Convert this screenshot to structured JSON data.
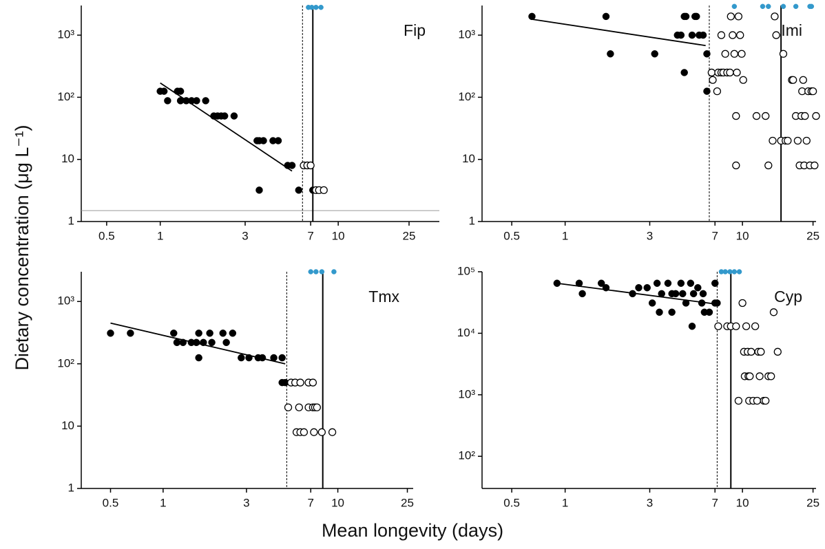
{
  "figure": {
    "xlabel": "Mean longevity (days)",
    "ylabel": "Dietary concentration (μg L⁻¹)"
  },
  "chart_data": [
    {
      "type": "scatter",
      "title": "Fip",
      "xlim": [
        0.36,
        37
      ],
      "ylim": [
        1,
        3000
      ],
      "log_x": true,
      "log_y": true,
      "xticks": [
        0.5,
        1,
        3,
        7,
        10,
        25
      ],
      "yticks": [
        1,
        10,
        {
          "value": 100,
          "label": "10²"
        },
        {
          "value": 1000,
          "label": "10³"
        }
      ],
      "series": [
        {
          "color": "#000000",
          "filled": true,
          "x": [
            1,
            1.05,
            1.1,
            1.25,
            1.3,
            1.3,
            1.4,
            1.5,
            1.6,
            1.8,
            2.0,
            2.1,
            2.2,
            2.3,
            2.6,
            3.5,
            3.6,
            3.8,
            4.3,
            4.6,
            3.6,
            5.2,
            5.5,
            6,
            7.2
          ],
          "values": [
            125,
            125,
            88,
            125,
            125,
            88,
            88,
            88,
            88,
            88,
            50,
            50,
            50,
            50,
            50,
            20,
            20,
            20,
            20,
            20,
            3.2,
            8,
            8,
            3.2,
            3.2
          ]
        },
        {
          "color": "#000000",
          "filled": false,
          "x": [
            6.4,
            6.7,
            7,
            7.5,
            7.8,
            8.3
          ],
          "values": [
            8,
            8,
            8,
            3.2,
            3.2,
            3.2
          ]
        },
        {
          "color": "#3399cc",
          "filled": true,
          "small": true,
          "x": [
            6.8,
            7.1,
            7.5,
            8
          ],
          "values": [
            2800,
            2800,
            2800,
            2800
          ]
        }
      ],
      "fit": {
        "x": [
          1,
          5.5
        ],
        "values": [
          170,
          6.5
        ]
      },
      "vlines": [
        {
          "x": 6.3,
          "style": "dashed"
        },
        {
          "x": 7.2,
          "style": "solid"
        }
      ],
      "hlines": [
        {
          "y": 1.5,
          "color": "#999999"
        }
      ]
    },
    {
      "type": "scatter",
      "title": "Imi",
      "xlim": [
        0.34,
        26
      ],
      "ylim": [
        1,
        3000
      ],
      "log_x": true,
      "log_y": true,
      "xticks": [
        0.5,
        1,
        3,
        7,
        10,
        25
      ],
      "yticks": [
        1,
        10,
        {
          "value": 100,
          "label": "10²"
        },
        {
          "value": 1000,
          "label": "10³"
        }
      ],
      "series": [
        {
          "color": "#000000",
          "filled": true,
          "x": [
            0.65,
            1.7,
            1.8,
            3.2,
            4.3,
            4.5,
            4.7,
            4.8,
            4.7,
            5.2,
            5.4,
            5.5,
            5.7,
            6,
            6.3,
            6.3
          ],
          "values": [
            2000,
            2000,
            500,
            500,
            1000,
            1000,
            2000,
            2000,
            250,
            1000,
            2000,
            2000,
            1000,
            1000,
            500,
            125
          ]
        },
        {
          "color": "#000000",
          "filled": false,
          "x": [
            6.7,
            6.8,
            7.2,
            7.3,
            7.6,
            7.8,
            8,
            8.2,
            8.5,
            8.6,
            8.8,
            9,
            9.3,
            9.5,
            9.7,
            9.9,
            10.1,
            7.6,
            9.2,
            9.2,
            12,
            13.5,
            14,
            14.8,
            15.2,
            15.5,
            16.5,
            17,
            17.5,
            18,
            19,
            19.3,
            20,
            20.5,
            21,
            21.5,
            21.7,
            22,
            22.3,
            22.5,
            23,
            23.5,
            24,
            24.5,
            25,
            26,
            25.5
          ],
          "values": [
            250,
            190,
            125,
            250,
            250,
            250,
            500,
            250,
            250,
            2000,
            1000,
            500,
            250,
            2000,
            1000,
            500,
            190,
            1000,
            50,
            8,
            50,
            50,
            8,
            20,
            2000,
            1000,
            20,
            500,
            20,
            20,
            190,
            190,
            50,
            20,
            8,
            50,
            125,
            190,
            8,
            50,
            20,
            125,
            8,
            125,
            125,
            50,
            8
          ]
        },
        {
          "color": "#3399cc",
          "filled": true,
          "small": true,
          "x": [
            9,
            13,
            14,
            17,
            20,
            24,
            24.5
          ],
          "values": [
            2900,
            2900,
            2900,
            2900,
            2900,
            2900,
            2900
          ]
        }
      ],
      "fit": {
        "x": [
          0.65,
          6.2
        ],
        "values": [
          1800,
          680
        ]
      },
      "vlines": [
        {
          "x": 6.5,
          "style": "dashed"
        },
        {
          "x": 16.5,
          "style": "solid"
        }
      ]
    },
    {
      "type": "scatter",
      "title": "Tmx",
      "xlim": [
        0.34,
        27
      ],
      "ylim": [
        1,
        3000
      ],
      "log_x": true,
      "log_y": true,
      "xticks": [
        0.5,
        1,
        3,
        7,
        10,
        25
      ],
      "yticks": [
        1,
        10,
        {
          "value": 100,
          "label": "10²"
        },
        {
          "value": 1000,
          "label": "10³"
        }
      ],
      "series": [
        {
          "color": "#000000",
          "filled": true,
          "x": [
            0.5,
            0.65,
            1.15,
            1.2,
            1.3,
            1.45,
            1.55,
            1.6,
            1.6,
            1.7,
            1.85,
            1.9,
            2.2,
            2.3,
            2.5,
            2.8,
            3.1,
            3.5,
            3.7,
            4.3,
            4.8,
            4.8,
            5
          ],
          "values": [
            310,
            310,
            310,
            220,
            220,
            220,
            220,
            310,
            125,
            220,
            310,
            220,
            310,
            220,
            310,
            125,
            125,
            125,
            125,
            125,
            125,
            50,
            50
          ]
        },
        {
          "color": "#000000",
          "filled": false,
          "x": [
            5.2,
            5.4,
            5.7,
            6.1,
            5.8,
            6.1,
            6.4,
            6,
            6.8,
            7.2,
            6.8,
            7.2,
            7.4,
            7.6,
            7.3,
            8.1,
            9.3
          ],
          "values": [
            20,
            50,
            50,
            50,
            8,
            8,
            8,
            20,
            50,
            50,
            20,
            20,
            20,
            20,
            8,
            8,
            8
          ]
        },
        {
          "color": "#3399cc",
          "filled": true,
          "small": true,
          "x": [
            7,
            7.5,
            8.1,
            9.5
          ],
          "values": [
            3000,
            3000,
            3000,
            3000
          ]
        }
      ],
      "fit": {
        "x": [
          0.5,
          5
        ],
        "values": [
          450,
          100
        ]
      },
      "vlines": [
        {
          "x": 5.1,
          "style": "dashed"
        },
        {
          "x": 8.2,
          "style": "solid"
        }
      ]
    },
    {
      "type": "scatter",
      "title": "Cyp",
      "xlim": [
        0.34,
        26
      ],
      "ylim": [
        30,
        100000
      ],
      "log_x": true,
      "log_y": true,
      "xticks": [
        0.5,
        1,
        3,
        7,
        10,
        25
      ],
      "yticks": [
        {
          "value": 100,
          "label": "10²"
        },
        {
          "value": 1000,
          "label": "10³"
        },
        {
          "value": 10000,
          "label": "10⁴"
        },
        {
          "value": 100000,
          "label": "10⁵"
        }
      ],
      "series": [
        {
          "color": "#000000",
          "filled": true,
          "x": [
            0.9,
            1.2,
            1.25,
            1.6,
            1.7,
            2.4,
            2.6,
            2.9,
            3.1,
            3.3,
            3.5,
            3.4,
            3.8,
            4,
            4.2,
            4,
            4.5,
            4.6,
            4.8,
            5.1,
            5.3,
            5.6,
            5.9,
            6,
            6.1,
            6.5,
            5.2,
            7,
            7,
            7.2
          ],
          "values": [
            65000,
            65000,
            44000,
            65000,
            55000,
            44000,
            55000,
            55000,
            31000,
            65000,
            44000,
            22000,
            65000,
            44000,
            44000,
            22000,
            65000,
            44000,
            31000,
            65000,
            44000,
            55000,
            31000,
            44000,
            22000,
            22000,
            13000,
            65000,
            31000,
            31000
          ]
        },
        {
          "color": "#000000",
          "filled": false,
          "x": [
            7.3,
            8.2,
            8.6,
            9.2,
            9.5,
            10,
            10.2,
            10.3,
            10.5,
            10.7,
            10.8,
            10.9,
            11,
            11.2,
            11.5,
            11.8,
            12.1,
            12.3,
            12.5,
            12.7,
            13.2,
            13.5,
            14,
            14.5,
            15,
            15.8
          ],
          "values": [
            13000,
            13000,
            13000,
            13000,
            800,
            31000,
            5000,
            2000,
            13000,
            5000,
            2000,
            800,
            2000,
            5000,
            800,
            13000,
            800,
            5000,
            2000,
            5000,
            800,
            800,
            2000,
            2000,
            22000,
            5000
          ]
        },
        {
          "color": "#3399cc",
          "filled": true,
          "small": true,
          "x": [
            7.6,
            8,
            8.5,
            9,
            9.6
          ],
          "values": [
            100000,
            100000,
            100000,
            100000,
            100000
          ]
        }
      ],
      "fit": {
        "x": [
          0.9,
          7
        ],
        "values": [
          65000,
          30000
        ]
      },
      "vlines": [
        {
          "x": 7.2,
          "style": "dashed"
        },
        {
          "x": 8.6,
          "style": "solid"
        }
      ]
    }
  ]
}
